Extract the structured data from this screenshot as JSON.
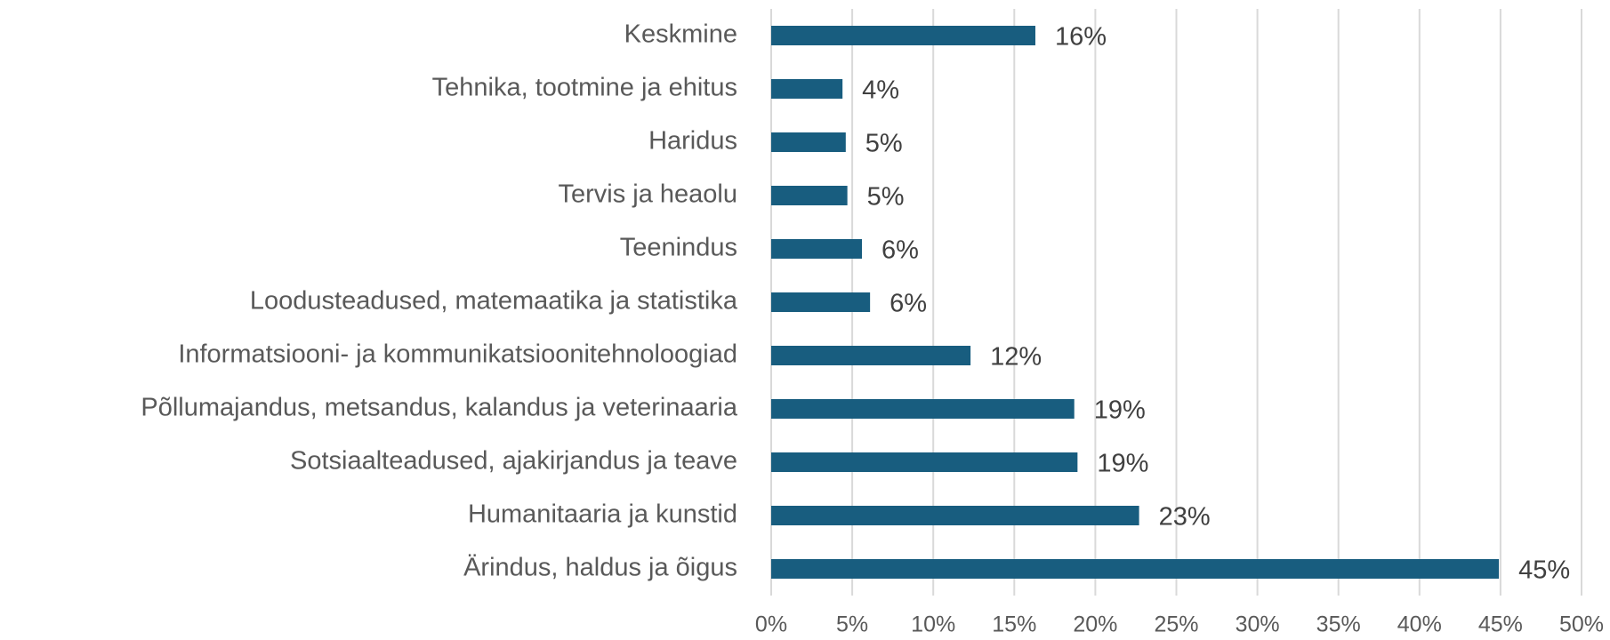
{
  "chart_data": {
    "type": "bar",
    "orientation": "horizontal",
    "categories": [
      "Keskmine",
      "Tehnika, tootmine ja ehitus",
      "Haridus",
      "Tervis ja heaolu",
      "Teenindus",
      "Loodusteadused, matemaatika ja statistika",
      "Informatsiooni- ja kommunikatsioonitehnoloogiad",
      "Põllumajandus, metsandus, kalandus ja veterinaaria",
      "Sotsiaalteadused, ajakirjandus ja teave",
      "Humanitaaria ja kunstid",
      "Ärindus, haldus ja õigus"
    ],
    "values": [
      16.3,
      4.4,
      4.6,
      4.7,
      5.6,
      6.1,
      12.3,
      18.7,
      18.9,
      22.7,
      44.9
    ],
    "value_labels": [
      "16%",
      "4%",
      "5%",
      "5%",
      "6%",
      "6%",
      "12%",
      "19%",
      "19%",
      "23%",
      "45%"
    ],
    "color": "#185d7f",
    "xlim": [
      0,
      50
    ],
    "xticks": [
      {
        "value": 0,
        "label": "0%"
      },
      {
        "value": 5,
        "label": "5%"
      },
      {
        "value": 10,
        "label": "10%"
      },
      {
        "value": 15,
        "label": "15%"
      },
      {
        "value": 20,
        "label": "20%"
      },
      {
        "value": 25,
        "label": "25%"
      },
      {
        "value": 30,
        "label": "30%"
      },
      {
        "value": 35,
        "label": "35%"
      },
      {
        "value": 40,
        "label": "40%"
      },
      {
        "value": 45,
        "label": "45%"
      },
      {
        "value": 50,
        "label": "50%"
      }
    ],
    "grid": true
  }
}
